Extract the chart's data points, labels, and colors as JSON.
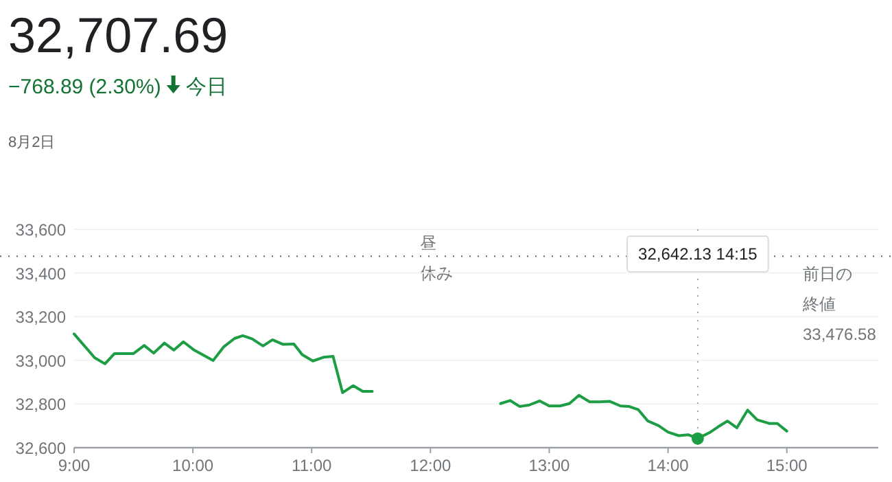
{
  "chart_data": {
    "type": "line",
    "title": "32,707.69",
    "subtitle": "−768.89 (2.30%)",
    "annotations": [
      "今日",
      "8月2日",
      "昼休み",
      "32,642.13  14:15"
    ],
    "series": [
      {
        "color": "#1e9e44",
        "x": [
          9.0,
          9.173,
          9.26,
          9.34,
          9.5,
          9.59,
          9.67,
          9.76,
          9.84,
          9.92,
          10.01,
          10.17,
          10.26,
          10.35,
          10.42,
          10.5,
          10.59,
          10.67,
          10.76,
          10.85,
          10.92,
          11.01,
          11.1,
          11.18,
          11.26,
          11.35,
          11.43,
          11.51
        ],
        "values": [
          33121,
          33012,
          32984,
          33031,
          33031,
          33068,
          33033,
          33079,
          33047,
          33085,
          33047,
          32999,
          33062,
          33100,
          33113,
          33098,
          33066,
          33094,
          33073,
          33075,
          33026,
          32997,
          33014,
          33018,
          32852,
          32884,
          32858,
          32858
        ]
      },
      {
        "color": "#1e9e44",
        "x": [
          12.59,
          12.67,
          12.75,
          12.83,
          12.92,
          13.0,
          13.09,
          13.17,
          13.25,
          13.34,
          13.42,
          13.51,
          13.6,
          13.67,
          13.75,
          13.83,
          13.92,
          14.0,
          14.09,
          14.17,
          14.25,
          14.35,
          14.42,
          14.5,
          14.58,
          14.67,
          14.75,
          14.85,
          14.92,
          15.0
        ],
        "values": [
          32802,
          32816,
          32789,
          32795,
          32814,
          32791,
          32791,
          32802,
          32840,
          32810,
          32810,
          32812,
          32791,
          32789,
          32774,
          32722,
          32701,
          32671,
          32655,
          32659,
          32642,
          32669,
          32695,
          32722,
          32691,
          32772,
          32728,
          32711,
          32711,
          32676
        ]
      },
      {
        "type": "scatter",
        "marker": "circle",
        "color": "#1e9e44",
        "x": [
          14.25
        ],
        "values": [
          32642
        ]
      }
    ],
    "xlim": [
      9,
      15.77
    ],
    "ylim": [
      32600,
      33600
    ],
    "xticks": [
      {
        "value": 9,
        "label": "9:00"
      },
      {
        "value": 10,
        "label": "10:00"
      },
      {
        "value": 11,
        "label": "11:00"
      },
      {
        "value": 12,
        "label": "12:00"
      },
      {
        "value": 13,
        "label": "13:00"
      },
      {
        "value": 14,
        "label": "14:00"
      },
      {
        "value": 15,
        "label": "15:00"
      }
    ],
    "yticks": [
      {
        "value": 32600,
        "label": "32,600"
      },
      {
        "value": 32800,
        "label": "32,800"
      },
      {
        "value": 33000,
        "label": "33,000"
      },
      {
        "value": 33200,
        "label": "33,200"
      },
      {
        "value": 33400,
        "label": "33,400"
      },
      {
        "value": 33600,
        "label": "33,600"
      }
    ],
    "ref_lines": [
      {
        "axis": "y",
        "value": 33476.58,
        "label": "前日の終値\n33,476.58",
        "line_style": "dotted",
        "color": "#5f6368"
      },
      {
        "axis": "x",
        "value": 14.25,
        "line_style": "dotted",
        "color": "#9aa0a6"
      }
    ],
    "grid": "y",
    "marker": "none",
    "line_style": "solid"
  }
}
